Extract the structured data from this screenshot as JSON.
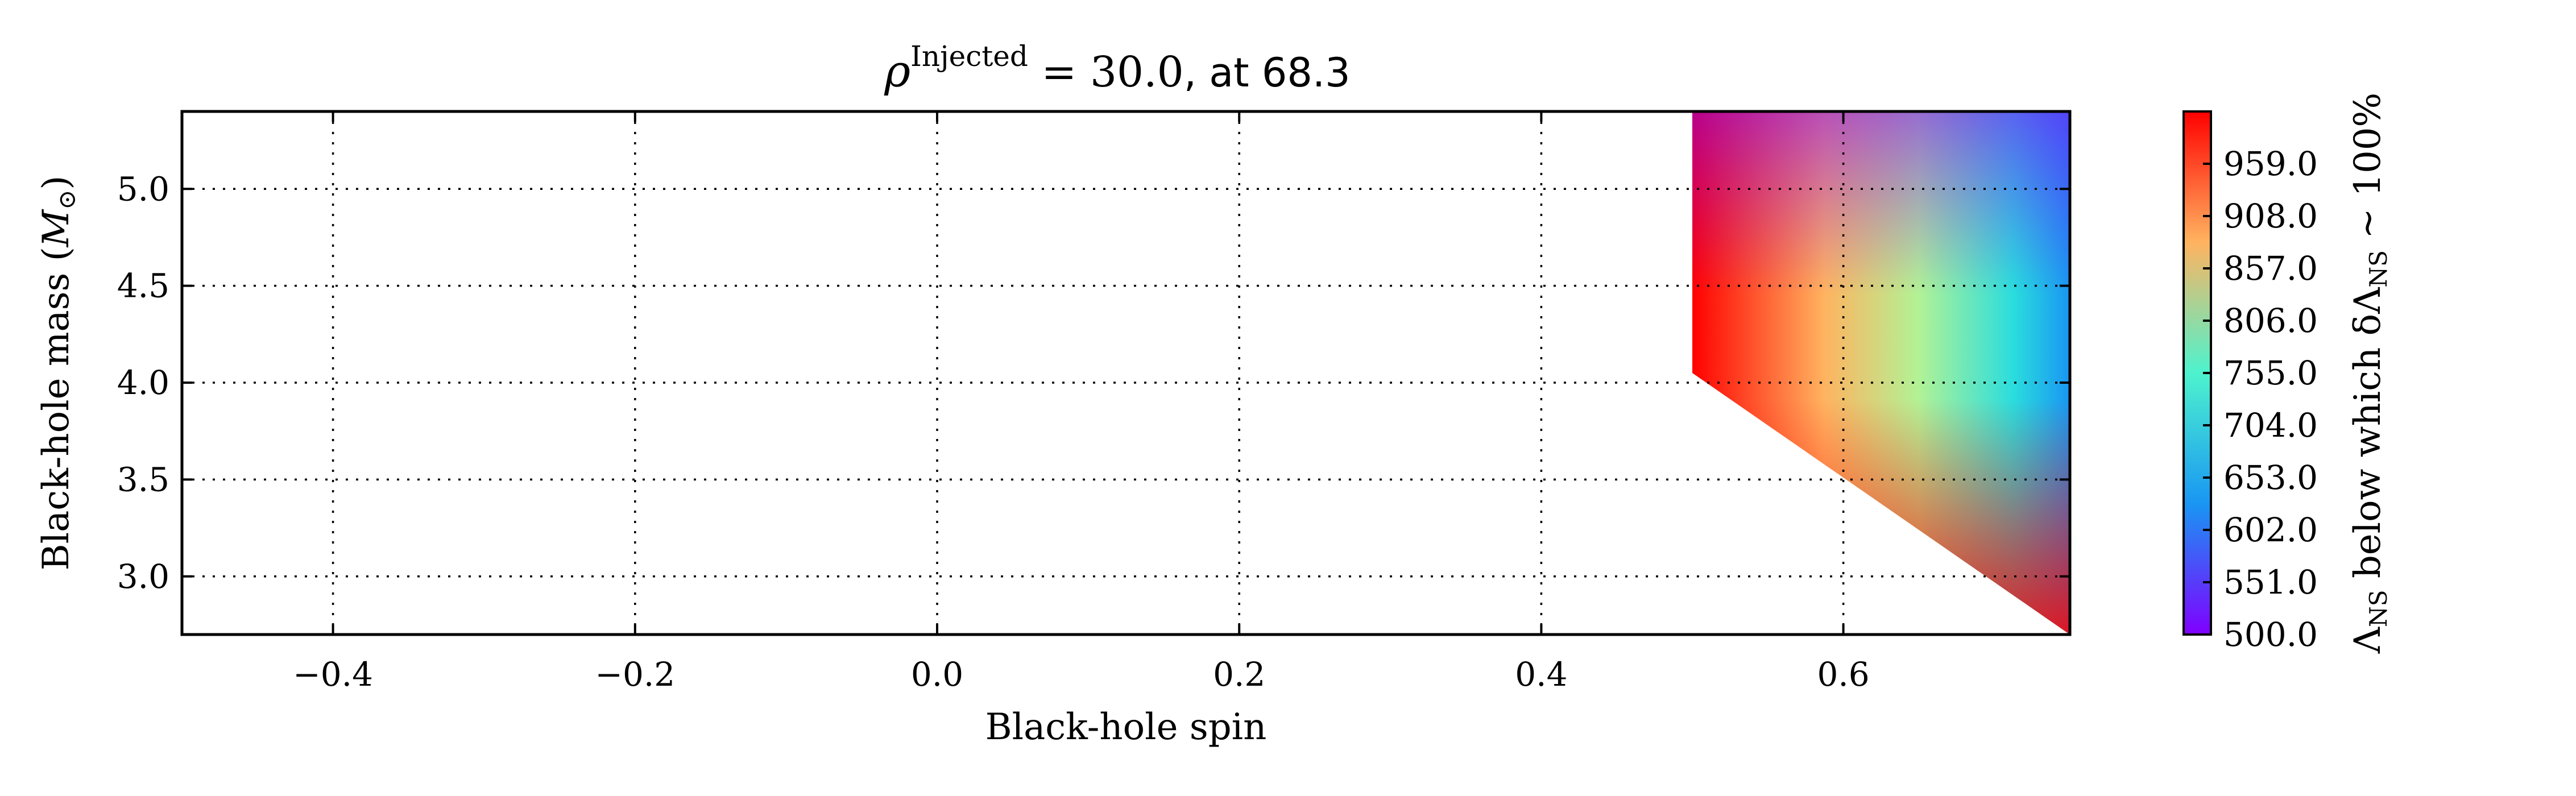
{
  "chart_data": {
    "type": "heatmap",
    "title_parts": {
      "symbol": "ρ",
      "superscript": "Injected",
      "equals_value": " = 30.0",
      "suffix": ", at 68.3"
    },
    "xlabel": "Black-hole spin",
    "ylabel_text": "Black-hole mass (",
    "ylabel_symbol": "M",
    "ylabel_sub": "⊙",
    "ylabel_close": ")",
    "xlim": [
      -0.5,
      0.75
    ],
    "ylim": [
      2.7,
      5.4
    ],
    "xticks": [
      -0.4,
      -0.2,
      0.0,
      0.2,
      0.4,
      0.6
    ],
    "xtick_labels": [
      "−0.4",
      "−0.2",
      "0.0",
      "0.2",
      "0.4",
      "0.6"
    ],
    "yticks": [
      3.0,
      3.5,
      4.0,
      4.5,
      5.0
    ],
    "ytick_labels": [
      "3.0",
      "3.5",
      "4.0",
      "4.5",
      "5.0"
    ],
    "grid": true,
    "filled_region": {
      "polygon": [
        [
          0.5,
          5.4
        ],
        [
          0.75,
          5.4
        ],
        [
          0.75,
          2.7
        ],
        [
          0.5,
          4.05
        ]
      ],
      "value_by_corner": {
        "spin_0.5": 1010,
        "spin_0.75_mass_5.4": 500,
        "spin_0.75_mass_4.0": 720,
        "spin_0.75_mass_3.0": 900
      }
    },
    "colorbar": {
      "min": 500.0,
      "max": 1010.0,
      "ticks": [
        500.0,
        551.0,
        602.0,
        653.0,
        704.0,
        755.0,
        806.0,
        857.0,
        908.0,
        959.0
      ],
      "tick_labels": [
        "500.0",
        "551.0",
        "602.0",
        "653.0",
        "704.0",
        "755.0",
        "806.0",
        "857.0",
        "908.0",
        "959.0"
      ],
      "label_main": "Λ",
      "label_sub": "NS",
      "label_mid": " below which δΛ",
      "label_sub2": "NS",
      "label_end": " ~ 100%",
      "colormap": "rainbow",
      "colors": [
        "#8000ff",
        "#2adddd",
        "#d4dd80",
        "#ff0000"
      ]
    }
  }
}
